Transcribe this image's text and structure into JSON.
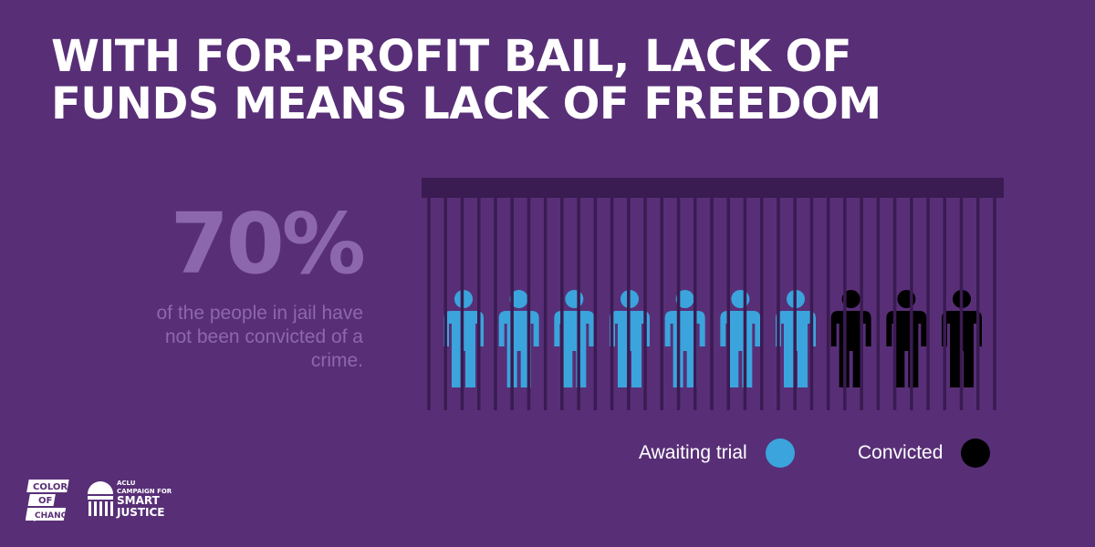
{
  "title": {
    "line1": "WITH FOR-PROFIT BAIL, LACK OF",
    "line2": "FUNDS MEANS LACK OF FREEDOM"
  },
  "stat": {
    "value": "70%",
    "line1": "of the people in jail have",
    "line2": "not been convicted of a",
    "line3": "crime."
  },
  "figures": {
    "total": 10,
    "awaiting_count": 7,
    "convicted_count": 3
  },
  "legend": {
    "awaiting_label": "Awaiting trial",
    "convicted_label": "Convicted"
  },
  "colors": {
    "background": "#582f77",
    "awaiting": "#3ba4dc",
    "convicted": "#000000",
    "bars": "#3a1b52",
    "stat": "#8d67ad"
  },
  "logos": {
    "color_of_change": {
      "line1": "COLOR",
      "line2": "OF",
      "line3": "CHANGE"
    },
    "aclu": {
      "line1": "ACLU",
      "line2": "CAMPAIGN FOR",
      "line3": "SMART",
      "line4": "JUSTICE"
    }
  }
}
